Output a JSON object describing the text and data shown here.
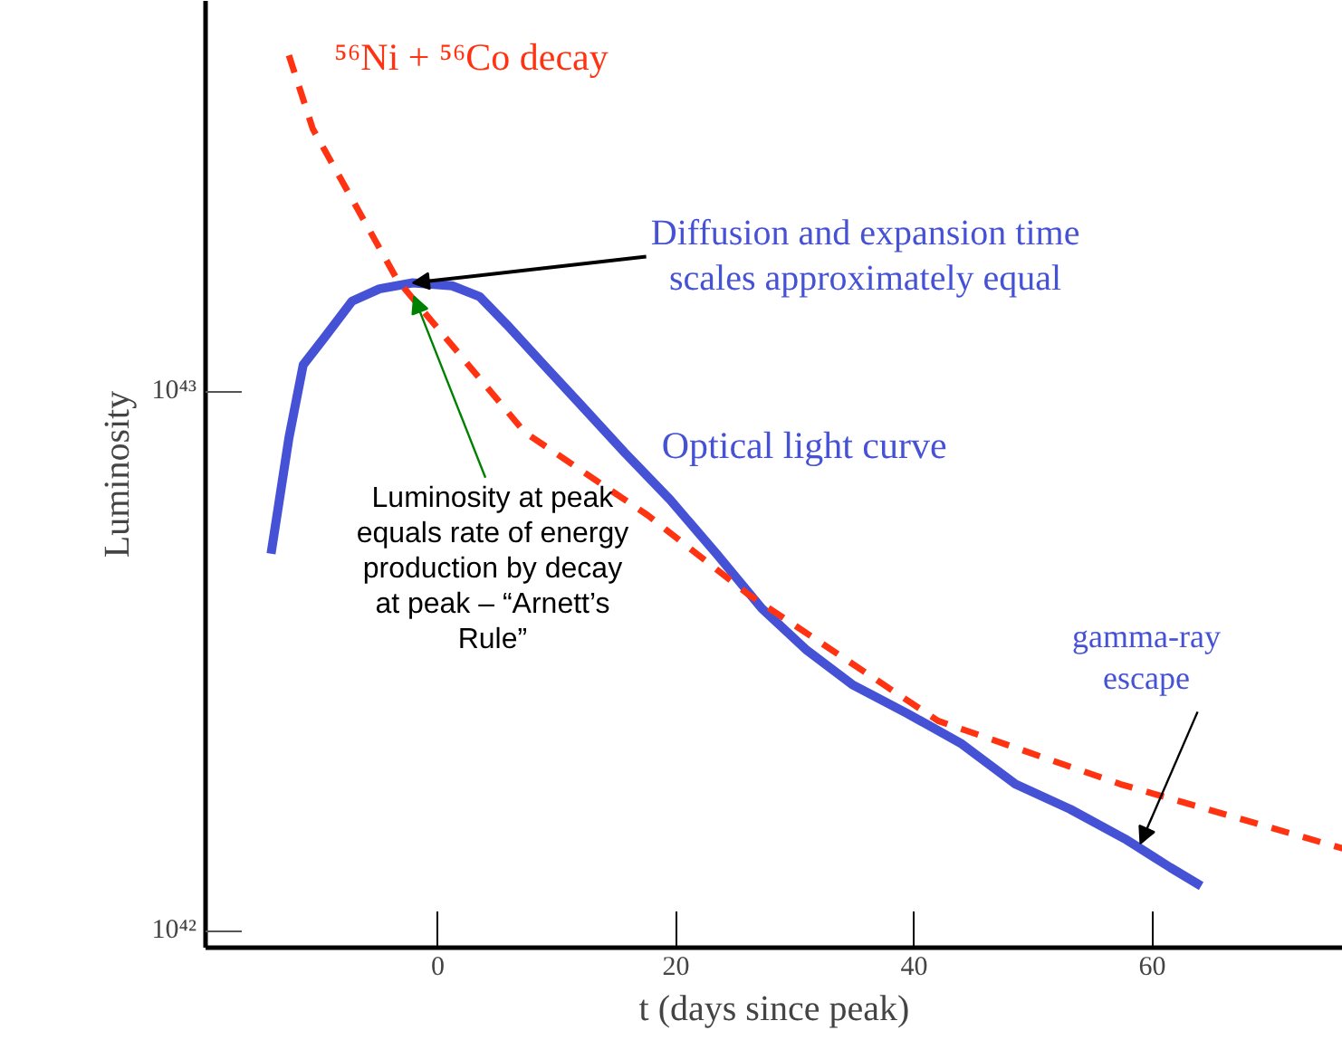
{
  "chart_data": {
    "type": "line",
    "xlabel": "t (days since peak)",
    "ylabel": "Luminosity",
    "log": "y",
    "xlim": [
      -19.5,
      76
    ],
    "ylim": [
      9.3e+41,
      5.3e+43
    ],
    "xticks": [
      0,
      20,
      40,
      60
    ],
    "yticks": [
      {
        "value": 1e+42,
        "label": "10⁴²"
      },
      {
        "value": 1e+43,
        "label": "10⁴³"
      }
    ],
    "grid": false,
    "series": [
      {
        "name": "Optical light curve",
        "color": "#4652d6",
        "line_style": "solid",
        "x": [
          -14.0,
          -12.5,
          -11.3,
          -9.5,
          -7.2,
          -4.9,
          -2.1,
          1.2,
          3.5,
          5.8,
          8.9,
          11.9,
          15.7,
          19.5,
          23.4,
          27.2,
          31.0,
          34.8,
          39.4,
          44.0,
          48.5,
          53.1,
          57.7,
          61.5,
          64.1
        ],
        "values": [
          5e+42,
          8.2e+42,
          1.12e+43,
          1.26e+43,
          1.47e+43,
          1.55e+43,
          1.59e+43,
          1.57e+43,
          1.5e+43,
          1.33e+43,
          1.12e+43,
          9.5e+42,
          7.7e+42,
          6.3e+42,
          5e+42,
          3.96e+42,
          3.31e+42,
          2.86e+42,
          2.53e+42,
          2.22e+42,
          1.87e+42,
          1.68e+42,
          1.48e+42,
          1.31e+42,
          1.21e+42
        ]
      },
      {
        "name": "⁵⁶Ni + ⁵⁶Co  decay",
        "color": "#ff3311",
        "line_style": "dashed",
        "x": [
          -12.5,
          -10.5,
          -3.4,
          7.3,
          17.6,
          26.1,
          42.0,
          57.3,
          76.0
        ],
        "values": [
          4.2e+43,
          3.07e+43,
          1.61e+43,
          8.4e+42,
          5.9e+42,
          4.2e+42,
          2.45e+42,
          1.87e+42,
          1.42e+42
        ]
      }
    ],
    "annotations": [
      {
        "text": "Diffusion and expansion time scales approximately equal",
        "x": -2.1,
        "y": 1.59e+43
      },
      {
        "text": "Luminosity at peak equals rate of energy production by decay at peak – “Arnett’s Rule”",
        "x": -2,
        "y": 1.5e+43
      },
      {
        "text": "gamma-ray escape",
        "x": 59,
        "y": 1.45e+42
      }
    ]
  }
}
